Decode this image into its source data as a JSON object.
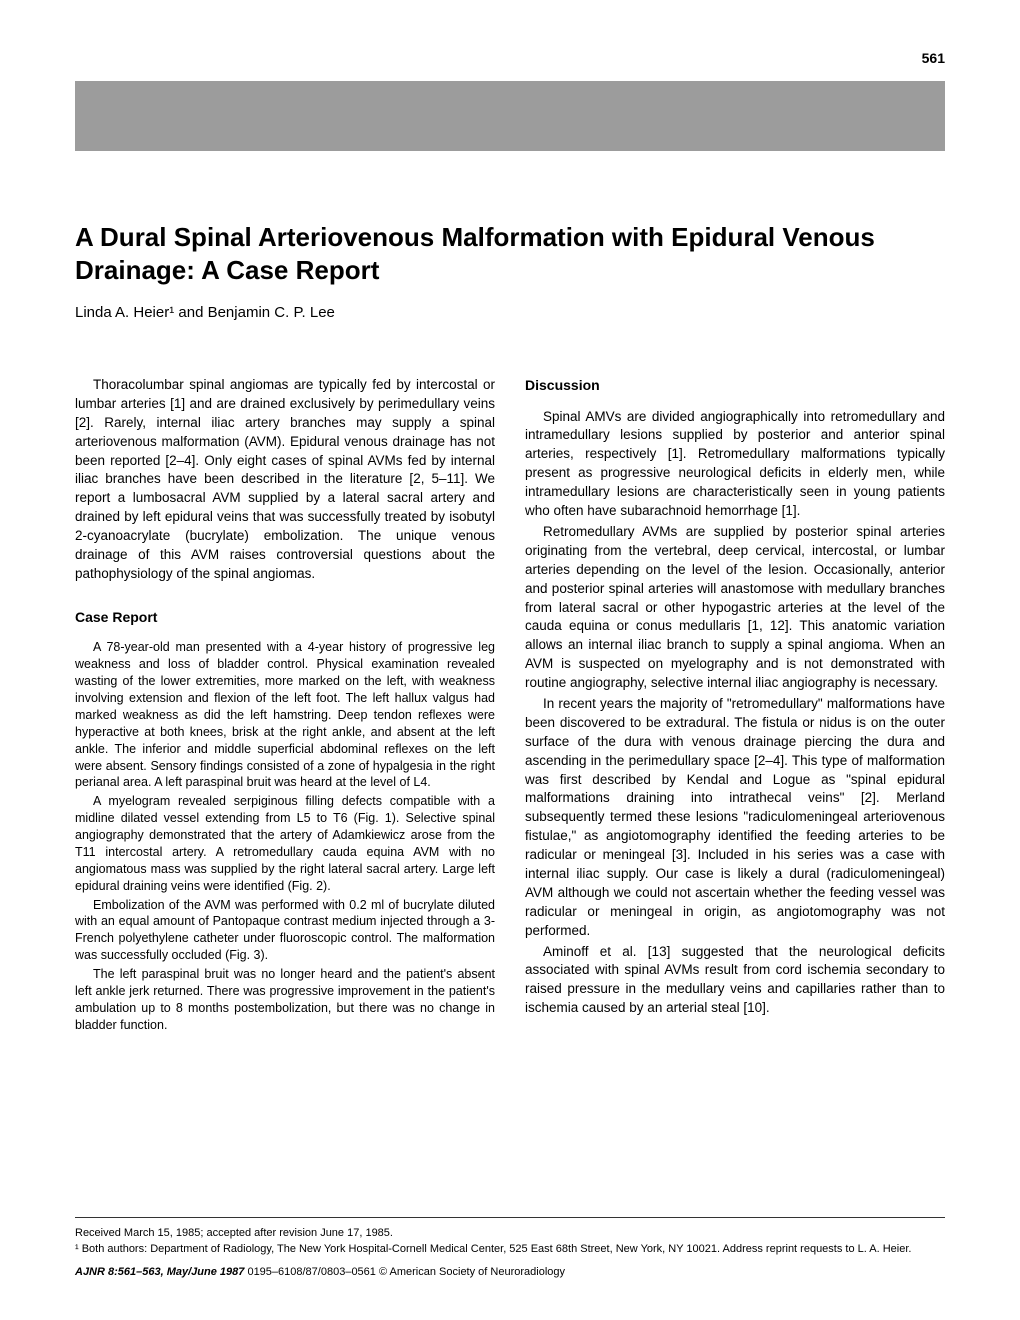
{
  "page_number": "561",
  "title": "A Dural Spinal Arteriovenous Malformation with Epidural Venous Drainage: A Case Report",
  "authors": "Linda A. Heier¹ and Benjamin C. P. Lee",
  "intro_para": "Thoracolumbar spinal angiomas are typically fed by intercostal or lumbar arteries [1] and are drained exclusively by perimedullary veins [2]. Rarely, internal iliac artery branches may supply a spinal arteriovenous malformation (AVM). Epidural venous drainage has not been reported [2–4]. Only eight cases of spinal AVMs fed by internal iliac branches have been described in the literature [2, 5–11]. We report a lumbosacral AVM supplied by a lateral sacral artery and drained by left epidural veins that was successfully treated by isobutyl 2-cyanoacrylate (bucrylate) embolization. The unique venous drainage of this AVM raises controversial questions about the pathophysiology of the spinal angiomas.",
  "case_report_heading": "Case Report",
  "case_p1": "A 78-year-old man presented with a 4-year history of progressive leg weakness and loss of bladder control. Physical examination revealed wasting of the lower extremities, more marked on the left, with weakness involving extension and flexion of the left foot. The left hallux valgus had marked weakness as did the left hamstring. Deep tendon reflexes were hyperactive at both knees, brisk at the right ankle, and absent at the left ankle. The inferior and middle superficial abdominal reflexes on the left were absent. Sensory findings consisted of a zone of hypalgesia in the right perianal area. A left paraspinal bruit was heard at the level of L4.",
  "case_p2": "A myelogram revealed serpiginous filling defects compatible with a midline dilated vessel extending from L5 to T6 (Fig. 1). Selective spinal angiography demonstrated that the artery of Adamkiewicz arose from the T11 intercostal artery. A retromedullary cauda equina AVM with no angiomatous mass was supplied by the right lateral sacral artery. Large left epidural draining veins were identified (Fig. 2).",
  "case_p3": "Embolization of the AVM was performed with 0.2 ml of bucrylate diluted with an equal amount of Pantopaque contrast medium injected through a 3-French polyethylene catheter under fluoroscopic control. The malformation was successfully occluded (Fig. 3).",
  "case_p4": "The left paraspinal bruit was no longer heard and the patient's absent left ankle jerk returned. There was progressive improvement in the patient's ambulation up to 8 months postembolization, but there was no change in bladder function.",
  "discussion_heading": "Discussion",
  "disc_p1": "Spinal AMVs are divided angiographically into retromedullary and intramedullary lesions supplied by posterior and anterior spinal arteries, respectively [1]. Retromedullary malformations typically present as progressive neurological deficits in elderly men, while intramedullary lesions are characteristically seen in young patients who often have subarachnoid hemorrhage [1].",
  "disc_p2": "Retromedullary AVMs are supplied by posterior spinal arteries originating from the vertebral, deep cervical, intercostal, or lumbar arteries depending on the level of the lesion. Occasionally, anterior and posterior spinal arteries will anastomose with medullary branches from lateral sacral or other hypogastric arteries at the level of the cauda equina or conus medullaris [1, 12]. This anatomic variation allows an internal iliac branch to supply a spinal angioma. When an AVM is suspected on myelography and is not demonstrated with routine angiography, selective internal iliac angiography is necessary.",
  "disc_p3": "In recent years the majority of \"retromedullary\" malformations have been discovered to be extradural. The fistula or nidus is on the outer surface of the dura with venous drainage piercing the dura and ascending in the perimedullary space [2–4]. This type of malformation was first described by Kendal and Logue as \"spinal epidural malformations draining into intrathecal veins\" [2]. Merland subsequently termed these lesions \"radiculomeningeal arteriovenous fistulae,\" as angiotomography identified the feeding arteries to be radicular or meningeal [3]. Included in his series was a case with internal iliac supply. Our case is likely a dural (radiculomeningeal) AVM although we could not ascertain whether the feeding vessel was radicular or meningeal in origin, as angiotomography was not performed.",
  "disc_p4": "Aminoff et al. [13] suggested that the neurological deficits associated with spinal AVMs result from cord ischemia secondary to raised pressure in the medullary veins and capillaries rather than to ischemia caused by an arterial steal [10].",
  "footer_received": "Received March 15, 1985; accepted after revision June 17, 1985.",
  "footer_affiliation": "¹ Both authors: Department of Radiology, The New York Hospital-Cornell Medical Center, 525 East 68th Street, New York, NY 10021. Address reprint requests to L. A. Heier.",
  "footer_journal_bold": "AJNR 8:561–563, May/June 1987",
  "footer_journal_rest": " 0195–6108/87/0803–0561 © American Society of Neuroradiology",
  "colors": {
    "header_bar": "#9c9c9c",
    "text": "#000000",
    "background": "#ffffff"
  }
}
